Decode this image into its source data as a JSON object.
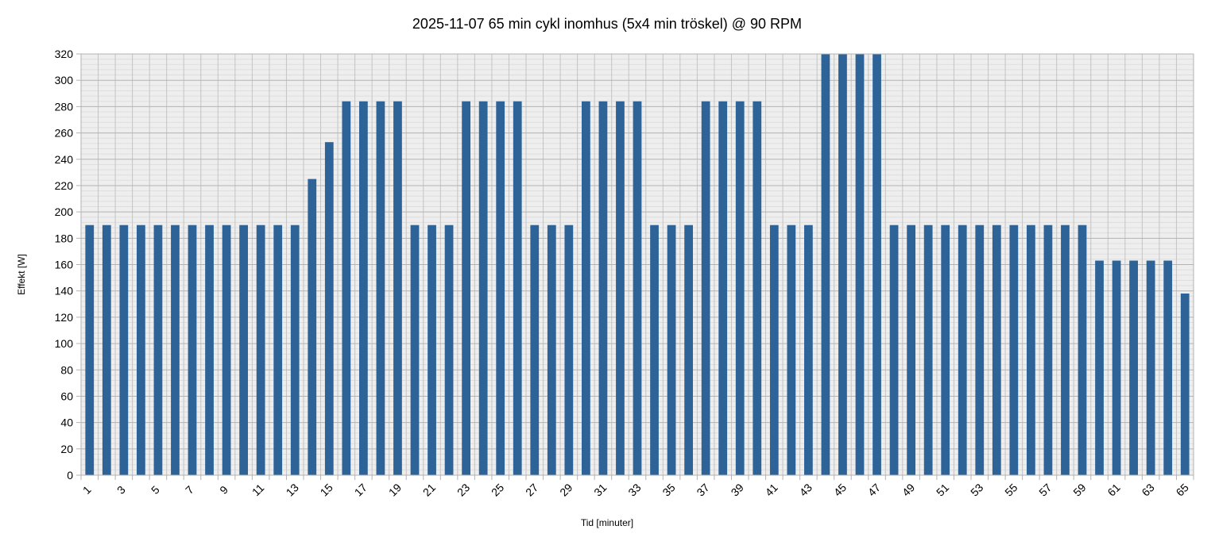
{
  "chart_data": {
    "type": "bar",
    "title": "2025-11-07 65 min cykl inomhus (5x4 min tröskel) @ 90 RPM",
    "xlabel": "Tid [minuter]",
    "ylabel": "Effekt [W]",
    "ylim": [
      0,
      320
    ],
    "y_major_step": 20,
    "y_minor_step": 4,
    "grid": true,
    "bar_color": "#2e6398",
    "x_tick_labels_every": 2,
    "categories": [
      "1",
      "2",
      "3",
      "4",
      "5",
      "6",
      "7",
      "8",
      "9",
      "10",
      "11",
      "12",
      "13",
      "14",
      "15",
      "16",
      "17",
      "18",
      "19",
      "20",
      "21",
      "22",
      "23",
      "24",
      "25",
      "26",
      "27",
      "28",
      "29",
      "30",
      "31",
      "32",
      "33",
      "34",
      "35",
      "36",
      "37",
      "38",
      "39",
      "40",
      "41",
      "42",
      "43",
      "44",
      "45",
      "46",
      "47",
      "48",
      "49",
      "50",
      "51",
      "52",
      "53",
      "54",
      "55",
      "56",
      "57",
      "58",
      "59",
      "60",
      "61",
      "62",
      "63",
      "64",
      "65"
    ],
    "values": [
      190,
      190,
      190,
      190,
      190,
      190,
      190,
      190,
      190,
      190,
      190,
      190,
      190,
      225,
      253,
      284,
      284,
      284,
      284,
      190,
      190,
      190,
      284,
      284,
      284,
      284,
      190,
      190,
      190,
      284,
      284,
      284,
      284,
      190,
      190,
      190,
      284,
      284,
      284,
      284,
      190,
      190,
      190,
      320,
      320,
      320,
      320,
      190,
      190,
      190,
      190,
      190,
      190,
      190,
      190,
      190,
      190,
      190,
      190,
      163,
      163,
      163,
      163,
      163,
      138
    ]
  }
}
